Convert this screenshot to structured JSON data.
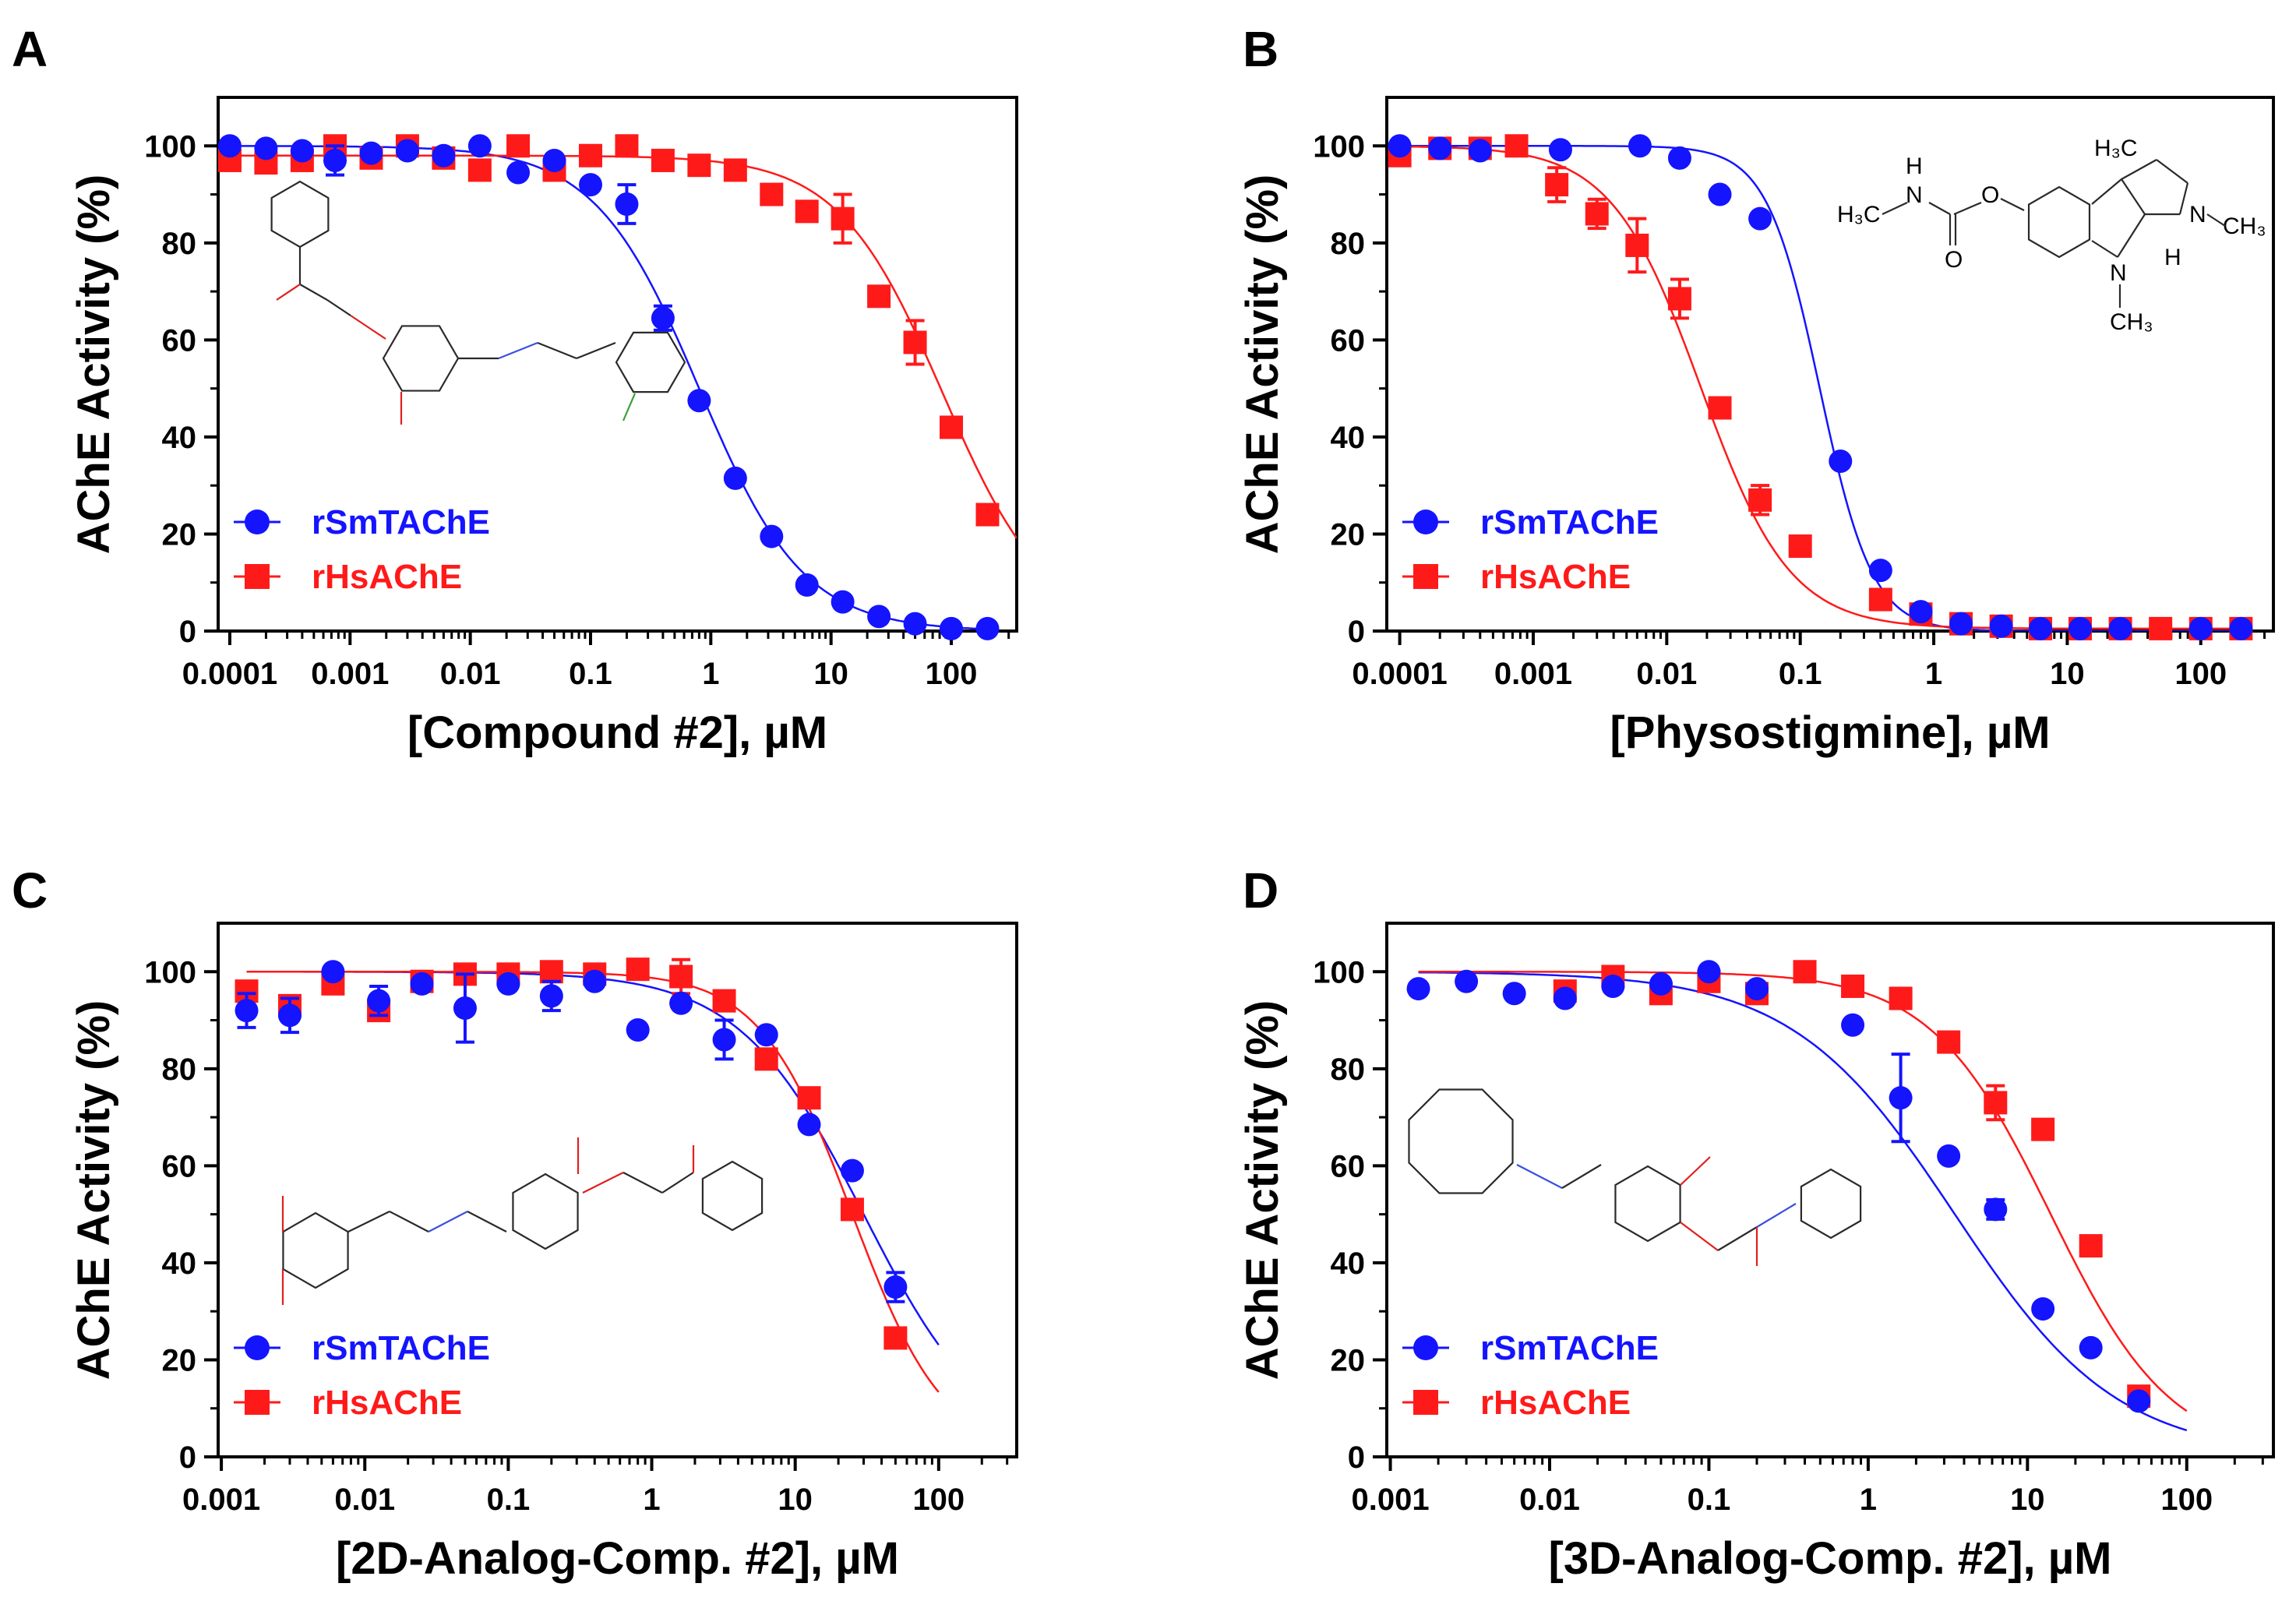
{
  "colors": {
    "blue": "#1414ff",
    "red": "#ff1a1a",
    "axis": "#000000",
    "structure_line": "#2a2a2a",
    "structure_N": "#3b4fe0",
    "structure_O": "#e02020",
    "structure_F": "#3aa03a"
  },
  "chart_data": [
    {
      "id": "A",
      "type": "scatter",
      "panel_label": "A",
      "xlabel": "[Compound #2], µM",
      "ylabel": "AChE Activity (%)",
      "xscale": "log",
      "xlim": [
        8e-05,
        350
      ],
      "ylim": [
        0,
        110
      ],
      "xticks": [
        0.0001,
        0.001,
        0.01,
        0.1,
        1,
        10,
        100
      ],
      "xtick_labels": [
        "0.0001",
        "0.001",
        "0.01",
        "0.1",
        "1",
        "10",
        "100"
      ],
      "yticks": [
        0,
        20,
        40,
        60,
        80,
        100
      ],
      "ytick_labels": [
        "0",
        "20",
        "40",
        "60",
        "80",
        "100"
      ],
      "legend_position": "bottom-left",
      "structure": "compound2",
      "series": [
        {
          "name": "rSmTAChE",
          "marker": "circle",
          "color": "blue",
          "fit": {
            "top": 100,
            "bottom": 0,
            "ic50": 0.8,
            "hill": 1.0,
            "x_range": [
              0.0001,
              250
            ]
          },
          "points": [
            {
              "x": 0.0001,
              "y": 100
            },
            {
              "x": 0.0002,
              "y": 99.5
            },
            {
              "x": 0.0004,
              "y": 99
            },
            {
              "x": 0.00075,
              "y": 97,
              "err": 3
            },
            {
              "x": 0.0015,
              "y": 98.5
            },
            {
              "x": 0.003,
              "y": 99
            },
            {
              "x": 0.006,
              "y": 98
            },
            {
              "x": 0.012,
              "y": 100
            },
            {
              "x": 0.025,
              "y": 94.5
            },
            {
              "x": 0.05,
              "y": 97
            },
            {
              "x": 0.1,
              "y": 92
            },
            {
              "x": 0.2,
              "y": 88,
              "err": 4
            },
            {
              "x": 0.4,
              "y": 64.5,
              "err": 2.5
            },
            {
              "x": 0.8,
              "y": 47.5
            },
            {
              "x": 1.6,
              "y": 31.5
            },
            {
              "x": 3.2,
              "y": 19.5
            },
            {
              "x": 6.3,
              "y": 9.5
            },
            {
              "x": 12.5,
              "y": 6
            },
            {
              "x": 25,
              "y": 3
            },
            {
              "x": 50,
              "y": 1.5
            },
            {
              "x": 100,
              "y": 0.5
            },
            {
              "x": 200,
              "y": 0.5
            }
          ]
        },
        {
          "name": "rHsAChE",
          "marker": "square",
          "color": "red",
          "fit": {
            "top": 98,
            "bottom": 0,
            "ic50": 85,
            "hill": 1.0,
            "x_range": [
              0.0001,
              350
            ]
          },
          "points": [
            {
              "x": 0.0001,
              "y": 97
            },
            {
              "x": 0.0002,
              "y": 96.5
            },
            {
              "x": 0.0004,
              "y": 97
            },
            {
              "x": 0.00075,
              "y": 100
            },
            {
              "x": 0.0015,
              "y": 97.5
            },
            {
              "x": 0.003,
              "y": 100
            },
            {
              "x": 0.006,
              "y": 97.5
            },
            {
              "x": 0.012,
              "y": 95
            },
            {
              "x": 0.025,
              "y": 100
            },
            {
              "x": 0.05,
              "y": 95
            },
            {
              "x": 0.1,
              "y": 98
            },
            {
              "x": 0.2,
              "y": 100
            },
            {
              "x": 0.4,
              "y": 97
            },
            {
              "x": 0.8,
              "y": 96
            },
            {
              "x": 1.6,
              "y": 95
            },
            {
              "x": 3.2,
              "y": 90
            },
            {
              "x": 6.3,
              "y": 86.5
            },
            {
              "x": 12.5,
              "y": 85,
              "err": 5
            },
            {
              "x": 25,
              "y": 69
            },
            {
              "x": 50,
              "y": 59.5,
              "err": 4.5
            },
            {
              "x": 100,
              "y": 42
            },
            {
              "x": 200,
              "y": 24
            }
          ]
        }
      ]
    },
    {
      "id": "B",
      "type": "scatter",
      "panel_label": "B",
      "xlabel": "[Physostigmine], µM",
      "ylabel": "AChE Activity (%)",
      "xscale": "log",
      "xlim": [
        8e-05,
        350
      ],
      "ylim": [
        0,
        110
      ],
      "xticks": [
        0.0001,
        0.001,
        0.01,
        0.1,
        1,
        10,
        100
      ],
      "xtick_labels": [
        "0.0001",
        "0.001",
        "0.01",
        "0.1",
        "1",
        "10",
        "100"
      ],
      "yticks": [
        0,
        20,
        40,
        60,
        80,
        100
      ],
      "ytick_labels": [
        "0",
        "20",
        "40",
        "60",
        "80",
        "100"
      ],
      "legend_position": "bottom-left",
      "structure": "physostigmine",
      "structure_labels": {
        "h3c": "H₃C",
        "h": "H",
        "n": "N",
        "o": "O",
        "ch3": "CH₃"
      },
      "series": [
        {
          "name": "rSmTAChE",
          "marker": "circle",
          "color": "blue",
          "fit": {
            "top": 100,
            "bottom": 0,
            "ic50": 0.14,
            "hill": 2.2,
            "x_range": [
              0.0001,
              200
            ]
          },
          "points": [
            {
              "x": 0.0001,
              "y": 100
            },
            {
              "x": 0.0002,
              "y": 99.5
            },
            {
              "x": 0.0004,
              "y": 99
            },
            {
              "x": 0.0016,
              "y": 99.2
            },
            {
              "x": 0.0063,
              "y": 100
            },
            {
              "x": 0.0125,
              "y": 97.5
            },
            {
              "x": 0.025,
              "y": 90
            },
            {
              "x": 0.05,
              "y": 85
            },
            {
              "x": 0.2,
              "y": 35
            },
            {
              "x": 0.4,
              "y": 12.5
            },
            {
              "x": 0.8,
              "y": 4
            },
            {
              "x": 1.6,
              "y": 1.5
            },
            {
              "x": 3.2,
              "y": 1
            },
            {
              "x": 6.3,
              "y": 0.5
            },
            {
              "x": 12.5,
              "y": 0.5
            },
            {
              "x": 25,
              "y": 0.5
            },
            {
              "x": 100,
              "y": 0.5
            },
            {
              "x": 200,
              "y": 0.5
            }
          ]
        },
        {
          "name": "rHsAChE",
          "marker": "square",
          "color": "red",
          "fit": {
            "top": 100,
            "bottom": 0.5,
            "ic50": 0.018,
            "hill": 1.3,
            "x_range": [
              0.0001,
              200
            ]
          },
          "points": [
            {
              "x": 0.0001,
              "y": 98
            },
            {
              "x": 0.0002,
              "y": 99.5
            },
            {
              "x": 0.0004,
              "y": 99.5
            },
            {
              "x": 0.00075,
              "y": 100
            },
            {
              "x": 0.0015,
              "y": 92,
              "err": 3.5
            },
            {
              "x": 0.003,
              "y": 86,
              "err": 3
            },
            {
              "x": 0.006,
              "y": 79.5,
              "err": 5.5
            },
            {
              "x": 0.0125,
              "y": 68.5,
              "err": 4
            },
            {
              "x": 0.025,
              "y": 46
            },
            {
              "x": 0.05,
              "y": 27,
              "err": 3
            },
            {
              "x": 0.1,
              "y": 17.5
            },
            {
              "x": 0.4,
              "y": 6.5
            },
            {
              "x": 0.8,
              "y": 3.5
            },
            {
              "x": 1.6,
              "y": 1.5
            },
            {
              "x": 3.2,
              "y": 1
            },
            {
              "x": 6.3,
              "y": 0.5
            },
            {
              "x": 12.5,
              "y": 0.5
            },
            {
              "x": 25,
              "y": 0.5
            },
            {
              "x": 50,
              "y": 0.5
            },
            {
              "x": 100,
              "y": 0.5
            },
            {
              "x": 200,
              "y": 0.5
            }
          ]
        }
      ]
    },
    {
      "id": "C",
      "type": "scatter",
      "panel_label": "C",
      "xlabel": "[2D-Analog-Comp. #2], µM",
      "ylabel": "AChE Activity (%)",
      "xscale": "log",
      "xlim": [
        0.00095,
        350
      ],
      "ylim": [
        0,
        110
      ],
      "xticks": [
        0.001,
        0.01,
        0.1,
        1,
        10,
        100
      ],
      "xtick_labels": [
        "0.001",
        "0.01",
        "0.1",
        "1",
        "10",
        "100"
      ],
      "yticks": [
        0,
        20,
        40,
        60,
        80,
        100
      ],
      "ytick_labels": [
        "0",
        "20",
        "40",
        "60",
        "80",
        "100"
      ],
      "legend_position": "bottom-left",
      "structure": "analog2d",
      "series": [
        {
          "name": "rSmTAChE",
          "marker": "circle",
          "color": "blue",
          "fit": {
            "top": 100,
            "bottom": 0,
            "ic50": 30,
            "hill": 1.0,
            "x_range": [
              0.0015,
              100
            ]
          },
          "points": [
            {
              "x": 0.0015,
              "y": 92,
              "err": 3.5
            },
            {
              "x": 0.003,
              "y": 91,
              "err": 3.5
            },
            {
              "x": 0.006,
              "y": 100
            },
            {
              "x": 0.0125,
              "y": 94,
              "err": 3
            },
            {
              "x": 0.025,
              "y": 97.5
            },
            {
              "x": 0.05,
              "y": 92.5,
              "err": 7
            },
            {
              "x": 0.1,
              "y": 97.5
            },
            {
              "x": 0.2,
              "y": 95,
              "err": 3
            },
            {
              "x": 0.4,
              "y": 98
            },
            {
              "x": 0.8,
              "y": 88
            },
            {
              "x": 1.6,
              "y": 93.5
            },
            {
              "x": 3.2,
              "y": 86,
              "err": 4
            },
            {
              "x": 6.3,
              "y": 87
            },
            {
              "x": 12.5,
              "y": 68.5
            },
            {
              "x": 25,
              "y": 59
            },
            {
              "x": 50,
              "y": 35,
              "err": 3
            }
          ]
        },
        {
          "name": "rHsAChE",
          "marker": "square",
          "color": "red",
          "fit": {
            "top": 100,
            "bottom": 0,
            "ic50": 25,
            "hill": 1.35,
            "x_range": [
              0.0015,
              100
            ]
          },
          "points": [
            {
              "x": 0.0015,
              "y": 96
            },
            {
              "x": 0.003,
              "y": 93
            },
            {
              "x": 0.006,
              "y": 97.5
            },
            {
              "x": 0.0125,
              "y": 92
            },
            {
              "x": 0.025,
              "y": 98
            },
            {
              "x": 0.05,
              "y": 99.5
            },
            {
              "x": 0.1,
              "y": 99.5
            },
            {
              "x": 0.2,
              "y": 100
            },
            {
              "x": 0.4,
              "y": 99.5
            },
            {
              "x": 0.8,
              "y": 100.5
            },
            {
              "x": 1.6,
              "y": 99,
              "err": 3.5
            },
            {
              "x": 3.2,
              "y": 94
            },
            {
              "x": 6.3,
              "y": 82
            },
            {
              "x": 12.5,
              "y": 74
            },
            {
              "x": 25,
              "y": 51
            },
            {
              "x": 50,
              "y": 24.5
            }
          ]
        }
      ]
    },
    {
      "id": "D",
      "type": "scatter",
      "panel_label": "D",
      "xlabel": "[3D-Analog-Comp. #2], µM",
      "ylabel": "AChE Activity (%)",
      "xscale": "log",
      "xlim": [
        0.00095,
        350
      ],
      "ylim": [
        0,
        110
      ],
      "xticks": [
        0.001,
        0.01,
        0.1,
        1,
        10,
        100
      ],
      "xtick_labels": [
        "0.001",
        "0.01",
        "0.1",
        "1",
        "10",
        "100"
      ],
      "yticks": [
        0,
        20,
        40,
        60,
        80,
        100
      ],
      "ytick_labels": [
        "0",
        "20",
        "40",
        "60",
        "80",
        "100"
      ],
      "legend_position": "bottom-left",
      "structure": "analog3d",
      "series": [
        {
          "name": "rSmTAChE",
          "marker": "circle",
          "color": "blue",
          "fit": {
            "top": 100,
            "bottom": 0,
            "ic50": 3.5,
            "hill": 0.85,
            "x_range": [
              0.0015,
              100
            ]
          },
          "points": [
            {
              "x": 0.0015,
              "y": 96.5
            },
            {
              "x": 0.003,
              "y": 98
            },
            {
              "x": 0.006,
              "y": 95.5
            },
            {
              "x": 0.0125,
              "y": 94.5
            },
            {
              "x": 0.025,
              "y": 97
            },
            {
              "x": 0.05,
              "y": 97.5
            },
            {
              "x": 0.1,
              "y": 100
            },
            {
              "x": 0.2,
              "y": 96.5
            },
            {
              "x": 0.8,
              "y": 89
            },
            {
              "x": 1.6,
              "y": 74,
              "err": 9
            },
            {
              "x": 3.2,
              "y": 62
            },
            {
              "x": 6.3,
              "y": 51,
              "err": 2
            },
            {
              "x": 12.5,
              "y": 30.5
            },
            {
              "x": 25,
              "y": 22.5
            },
            {
              "x": 50,
              "y": 11.5
            }
          ]
        },
        {
          "name": "rHsAChE",
          "marker": "square",
          "color": "red",
          "fit": {
            "top": 100,
            "bottom": 0,
            "ic50": 14,
            "hill": 1.15,
            "x_range": [
              0.0015,
              100
            ]
          },
          "points": [
            {
              "x": 0.0125,
              "y": 96
            },
            {
              "x": 0.025,
              "y": 99
            },
            {
              "x": 0.05,
              "y": 95.5
            },
            {
              "x": 0.1,
              "y": 98
            },
            {
              "x": 0.2,
              "y": 95.5
            },
            {
              "x": 0.4,
              "y": 100
            },
            {
              "x": 0.8,
              "y": 97
            },
            {
              "x": 1.6,
              "y": 94.5
            },
            {
              "x": 3.2,
              "y": 85.5
            },
            {
              "x": 6.3,
              "y": 73,
              "err": 3.5
            },
            {
              "x": 12.5,
              "y": 67.5
            },
            {
              "x": 25,
              "y": 43.5
            },
            {
              "x": 50,
              "y": 12.5
            }
          ]
        }
      ]
    }
  ]
}
